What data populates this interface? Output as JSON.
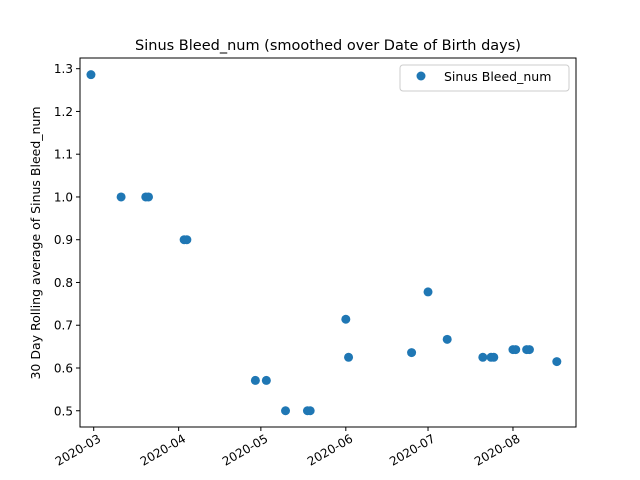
{
  "chart_data": {
    "type": "scatter",
    "title": "Sinus Bleed_num (smoothed over Date of Birth days)",
    "xlabel": "",
    "ylabel": "30 Day Rolling average of Sinus Bleed_num",
    "x_ticks": [
      "2020-03",
      "2020-04",
      "2020-05",
      "2020-06",
      "2020-07",
      "2020-08"
    ],
    "y_ticks": [
      "0.5",
      "0.6",
      "0.7",
      "0.8",
      "0.9",
      "1.0",
      "1.1",
      "1.2",
      "1.3"
    ],
    "xlim": [
      "2020-02-25",
      "2020-08-24"
    ],
    "ylim": [
      0.462,
      1.325
    ],
    "grid": false,
    "legend": {
      "position": "top-right",
      "entries": [
        "Sinus Bleed_num"
      ]
    },
    "series": [
      {
        "name": "Sinus Bleed_num",
        "color": "#1f77b4",
        "marker": "circle",
        "points": [
          {
            "x": "2020-02-29",
            "y": 1.286
          },
          {
            "x": "2020-03-11",
            "y": 1.0
          },
          {
            "x": "2020-03-20",
            "y": 1.0
          },
          {
            "x": "2020-03-21",
            "y": 1.0
          },
          {
            "x": "2020-04-03",
            "y": 0.9
          },
          {
            "x": "2020-04-04",
            "y": 0.9
          },
          {
            "x": "2020-04-29",
            "y": 0.571
          },
          {
            "x": "2020-05-03",
            "y": 0.571
          },
          {
            "x": "2020-05-10",
            "y": 0.5
          },
          {
            "x": "2020-05-18",
            "y": 0.5
          },
          {
            "x": "2020-05-19",
            "y": 0.5
          },
          {
            "x": "2020-06-01",
            "y": 0.714
          },
          {
            "x": "2020-06-02",
            "y": 0.625
          },
          {
            "x": "2020-06-25",
            "y": 0.636
          },
          {
            "x": "2020-07-01",
            "y": 0.778
          },
          {
            "x": "2020-07-08",
            "y": 0.667
          },
          {
            "x": "2020-07-21",
            "y": 0.625
          },
          {
            "x": "2020-07-24",
            "y": 0.625
          },
          {
            "x": "2020-07-25",
            "y": 0.625
          },
          {
            "x": "2020-08-01",
            "y": 0.643
          },
          {
            "x": "2020-08-02",
            "y": 0.643
          },
          {
            "x": "2020-08-06",
            "y": 0.643
          },
          {
            "x": "2020-08-07",
            "y": 0.643
          },
          {
            "x": "2020-08-17",
            "y": 0.615
          }
        ]
      }
    ]
  }
}
